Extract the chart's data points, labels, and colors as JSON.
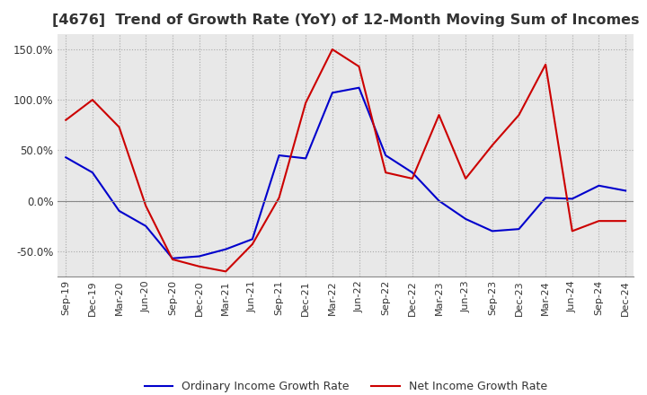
{
  "title": "[4676]  Trend of Growth Rate (YoY) of 12-Month Moving Sum of Incomes",
  "title_fontsize": 11.5,
  "ylim": [
    -75,
    165
  ],
  "yticks": [
    -50.0,
    0.0,
    50.0,
    100.0,
    150.0
  ],
  "background_color": "#ffffff",
  "plot_bg_color": "#e8e8e8",
  "ordinary_color": "#0000cc",
  "net_color": "#cc0000",
  "ordinary_label": "Ordinary Income Growth Rate",
  "net_label": "Net Income Growth Rate",
  "x_labels": [
    "Sep-19",
    "Dec-19",
    "Mar-20",
    "Jun-20",
    "Sep-20",
    "Dec-20",
    "Mar-21",
    "Jun-21",
    "Sep-21",
    "Dec-21",
    "Mar-22",
    "Jun-22",
    "Sep-22",
    "Dec-22",
    "Mar-23",
    "Jun-23",
    "Sep-23",
    "Dec-23",
    "Mar-24",
    "Jun-24",
    "Sep-24",
    "Dec-24"
  ],
  "ordinary_values": [
    43,
    28,
    -10,
    -25,
    -57,
    -55,
    -48,
    -38,
    45,
    42,
    107,
    112,
    45,
    28,
    0,
    -18,
    -30,
    -28,
    3,
    2,
    15,
    10
  ],
  "net_values": [
    80,
    100,
    73,
    -5,
    -58,
    -65,
    -70,
    -43,
    3,
    97,
    150,
    133,
    28,
    22,
    85,
    22,
    55,
    85,
    135,
    -30,
    -20,
    -20
  ]
}
